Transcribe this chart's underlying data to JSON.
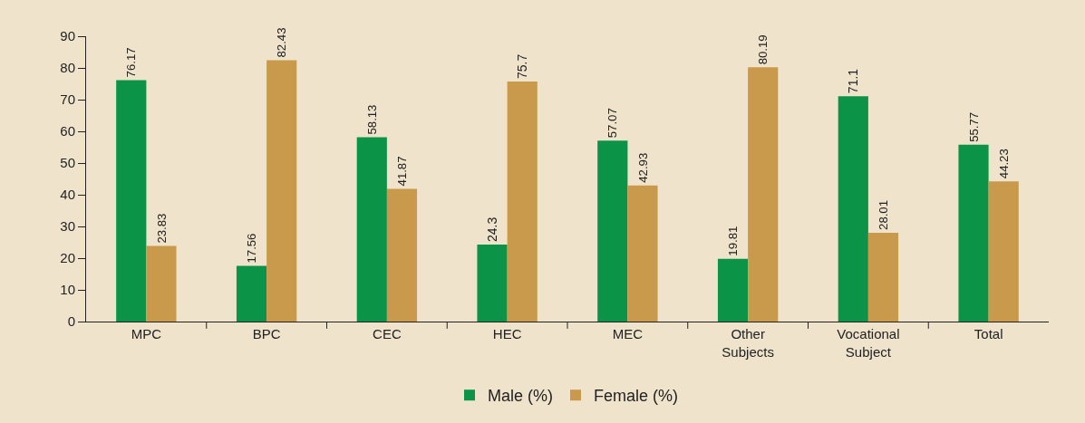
{
  "chart_data": {
    "type": "bar",
    "categories": [
      "MPC",
      "BPC",
      "CEC",
      "HEC",
      "MEC",
      "Other\nSubjects",
      "Vocational\nSubject",
      "Total"
    ],
    "series": [
      {
        "name": "Male (%)",
        "color": "#0b9447",
        "values": [
          76.17,
          17.56,
          58.13,
          24.3,
          57.07,
          19.81,
          71.1,
          55.77
        ]
      },
      {
        "name": "Female (%)",
        "color": "#c99a4b",
        "values": [
          23.83,
          82.43,
          41.87,
          75.7,
          42.93,
          80.19,
          28.01,
          44.23
        ]
      }
    ],
    "ylim": [
      0,
      90
    ],
    "yticks": [
      0,
      10,
      20,
      30,
      40,
      50,
      60,
      70,
      80,
      90
    ],
    "grid": false,
    "legend": "bottom",
    "data_labels": true
  }
}
